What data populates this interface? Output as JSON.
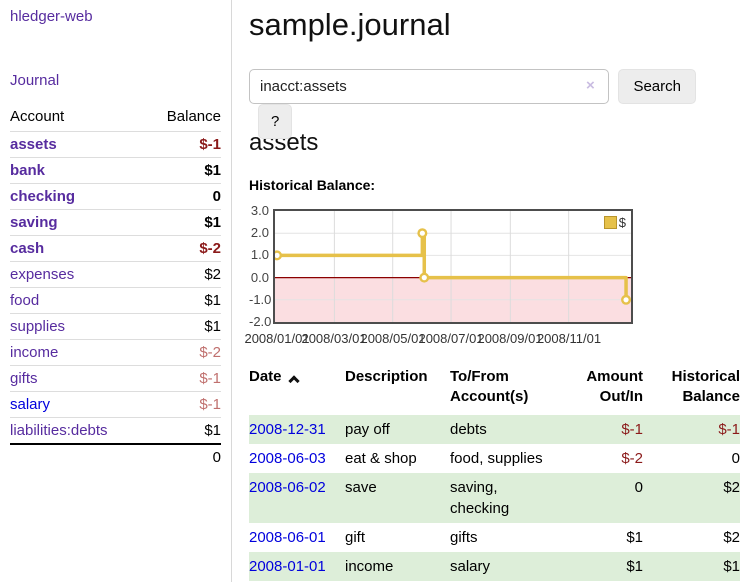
{
  "sidebar": {
    "brand": "hledger-web",
    "nav_journal": "Journal",
    "accounts": {
      "col_account": "Account",
      "col_balance": "Balance",
      "rows": [
        {
          "account": "assets",
          "indent": 1,
          "bold": true,
          "balance": "$-1",
          "balance_style": "neg"
        },
        {
          "account": "bank",
          "indent": 2,
          "bold": true,
          "balance": "$1",
          "balance_style": ""
        },
        {
          "account": "checking",
          "indent": 3,
          "bold": true,
          "balance": "0",
          "balance_style": ""
        },
        {
          "account": "saving",
          "indent": 3,
          "bold": true,
          "balance": "$1",
          "balance_style": ""
        },
        {
          "account": "cash",
          "indent": 2,
          "bold": true,
          "balance": "$-2",
          "balance_style": "neg"
        },
        {
          "account": "expenses",
          "indent": 1,
          "bold": false,
          "balance": "$2",
          "balance_style": ""
        },
        {
          "account": "food",
          "indent": 2,
          "bold": false,
          "balance": "$1",
          "balance_style": ""
        },
        {
          "account": "supplies",
          "indent": 2,
          "bold": false,
          "balance": "$1",
          "balance_style": ""
        },
        {
          "account": "income",
          "indent": 1,
          "bold": false,
          "balance": "$-2",
          "balance_style": "muted"
        },
        {
          "account": "gifts",
          "indent": 2,
          "bold": false,
          "balance": "$-1",
          "balance_style": "muted"
        },
        {
          "account": "salary",
          "indent": 2,
          "bold": false,
          "balance": "$-1",
          "balance_style": "muted",
          "link_color": "blue"
        },
        {
          "account": "liabilities:debts",
          "indent": 1,
          "bold": false,
          "balance": "$1",
          "balance_style": ""
        }
      ],
      "total": "0"
    }
  },
  "main": {
    "title": "sample.journal",
    "search": {
      "value": "inacct:assets",
      "clear_label": "×",
      "search_button": "Search",
      "help_button": "?"
    },
    "account_heading": "assets",
    "section_label": "Historical Balance:"
  },
  "chart_data": {
    "type": "line",
    "step": true,
    "title": "Historical Balance of assets",
    "legend": [
      {
        "label": "$",
        "color": "#e6c14a",
        "border": "#b9952c"
      }
    ],
    "ylim": [
      -2,
      3
    ],
    "y_ticks": [
      {
        "label": "3.0",
        "value": 3
      },
      {
        "label": "2.0",
        "value": 2
      },
      {
        "label": "1.0",
        "value": 1
      },
      {
        "label": "0.0",
        "value": 0
      },
      {
        "label": "-1.0",
        "value": -1
      },
      {
        "label": "-2.0",
        "value": -2
      }
    ],
    "x_span_days": 366,
    "x_ticks": [
      {
        "label": "2008/01/01",
        "day": 0
      },
      {
        "label": "2008/03/01",
        "day": 60
      },
      {
        "label": "2008/05/01",
        "day": 121
      },
      {
        "label": "2008/07/01",
        "day": 182
      },
      {
        "label": "2008/09/01",
        "day": 244
      },
      {
        "label": "2008/11/01",
        "day": 305
      }
    ],
    "series": [
      {
        "name": "$",
        "color": "#e6c14a",
        "points": [
          {
            "date": "2008-01-01",
            "day": 0,
            "value": 1
          },
          {
            "date": "2008-06-01",
            "day": 152,
            "value": 2
          },
          {
            "date": "2008-06-03",
            "day": 154,
            "value": 0
          },
          {
            "date": "2008-12-31",
            "day": 365,
            "value": -1
          }
        ]
      }
    ],
    "negative_region_color": "#fbdee1",
    "zero_line_color": "#8b0000",
    "h_grid_values": [
      2,
      1,
      -1
    ],
    "grid_color": "#dcdcdc"
  },
  "register": {
    "columns": [
      {
        "lines": [
          "Date"
        ],
        "align": "left",
        "sortable": true,
        "sort": "asc"
      },
      {
        "lines": [
          "Description"
        ],
        "align": "left"
      },
      {
        "lines": [
          "To/From",
          "Account(s)"
        ],
        "align": "left"
      },
      {
        "lines": [
          "Amount",
          "Out/In"
        ],
        "align": "right"
      },
      {
        "lines": [
          "Historical",
          "Balance"
        ],
        "align": "right"
      }
    ],
    "rows": [
      {
        "date": "2008-12-31",
        "description": "pay off",
        "accounts": [
          "debts"
        ],
        "amount": "$-1",
        "amount_negative": true,
        "balance": "$-1",
        "balance_negative": true
      },
      {
        "date": "2008-06-03",
        "description": "eat & shop",
        "accounts": [
          "food, supplies"
        ],
        "amount": "$-2",
        "amount_negative": true,
        "balance": "0",
        "balance_negative": false
      },
      {
        "date": "2008-06-02",
        "description": "save",
        "accounts": [
          "saving,",
          "checking"
        ],
        "amount": "0",
        "amount_negative": false,
        "balance": "$2",
        "balance_negative": false
      },
      {
        "date": "2008-06-01",
        "description": "gift",
        "accounts": [
          "gifts"
        ],
        "amount": "$1",
        "amount_negative": false,
        "balance": "$2",
        "balance_negative": false
      },
      {
        "date": "2008-01-01",
        "description": "income",
        "accounts": [
          "salary"
        ],
        "amount": "$1",
        "amount_negative": false,
        "balance": "$1",
        "balance_negative": false
      }
    ]
  },
  "colors": {
    "link_purple": "#572c9f",
    "link_blue": "#0000dd",
    "negative": "#8b1a1a",
    "muted_negative": "#c0706e",
    "row_green": "#ddeed9"
  }
}
